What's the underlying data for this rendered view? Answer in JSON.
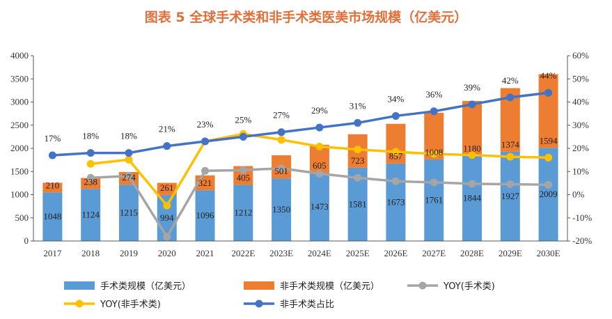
{
  "chart_data": {
    "type": "bar+line",
    "title": "图表 5 全球手术类和非手术类医美市场规模（亿美元）",
    "categories": [
      "2017",
      "2018",
      "2019",
      "2020",
      "2021",
      "2022E",
      "2023E",
      "2024E",
      "2025E",
      "2026E",
      "2027E",
      "2028E",
      "2029E",
      "2030E"
    ],
    "left_axis": {
      "min": 0,
      "max": 4000,
      "ticks": [
        "0",
        "500",
        "1000",
        "1500",
        "2000",
        "2500",
        "3000",
        "3500",
        "4000"
      ]
    },
    "right_axis": {
      "min": -20,
      "max": 60,
      "ticks": [
        "-20%",
        "-10%",
        "0%",
        "10%",
        "20%",
        "30%",
        "40%",
        "50%",
        "60%"
      ]
    },
    "series": [
      {
        "name": "手术类规模（亿美元）",
        "kind": "bar",
        "stack": 0,
        "color": "#5B9BD5",
        "values": [
          1048,
          1124,
          1215,
          994,
          1096,
          1212,
          1350,
          1473,
          1581,
          1673,
          1761,
          1844,
          1927,
          2009
        ],
        "labels": [
          "1048",
          "1124",
          "1215",
          "994",
          "1096",
          "1212",
          "1350",
          "1473",
          "1581",
          "1673",
          "1761",
          "1844",
          "1927",
          "2009"
        ]
      },
      {
        "name": "非手术类规模（亿美元）",
        "kind": "bar",
        "stack": 1,
        "color": "#ED7D31",
        "values": [
          210,
          238,
          274,
          261,
          321,
          405,
          501,
          605,
          723,
          857,
          1008,
          1180,
          1374,
          1594
        ],
        "labels": [
          "210",
          "238",
          "274",
          "261",
          "321",
          "405",
          "501",
          "605",
          "723",
          "857",
          "1008",
          "1180",
          "1374",
          "1594"
        ]
      },
      {
        "name": "YOY(手术类)",
        "kind": "line",
        "color": "#A5A5A5",
        "values": [
          null,
          7.3,
          8.1,
          -18.2,
          10.3,
          10.6,
          11.4,
          9.1,
          7.3,
          5.8,
          5.3,
          4.7,
          4.5,
          4.3
        ]
      },
      {
        "name": "YOY(非手术类)",
        "kind": "line",
        "color": "#FFC000",
        "values": [
          null,
          13.3,
          15.1,
          -4.7,
          23.0,
          26.2,
          23.7,
          20.8,
          19.5,
          18.5,
          17.6,
          17.1,
          16.4,
          16.0
        ]
      },
      {
        "name": "非手术类占比",
        "kind": "line",
        "color": "#4472C4",
        "values": [
          17,
          18,
          18,
          21,
          23,
          25,
          27,
          29,
          31,
          34,
          36,
          39,
          42,
          44
        ],
        "labels": [
          "17%",
          "18%",
          "18%",
          "21%",
          "23%",
          "25%",
          "27%",
          "29%",
          "31%",
          "34%",
          "36%",
          "39%",
          "42%",
          "44%"
        ]
      }
    ],
    "legend": {
      "position": "bottom",
      "items": [
        {
          "label": "手术类规模（亿美元）",
          "type": "bar",
          "color": "#5B9BD5"
        },
        {
          "label": "非手术类规模（亿美元）",
          "type": "bar",
          "color": "#ED7D31"
        },
        {
          "label": "YOY(手术类)",
          "type": "line",
          "color": "#A5A5A5"
        },
        {
          "label": "YOY(非手术类)",
          "type": "line",
          "color": "#FFC000"
        },
        {
          "label": "非手术类占比",
          "type": "line",
          "color": "#4472C4"
        }
      ]
    }
  }
}
